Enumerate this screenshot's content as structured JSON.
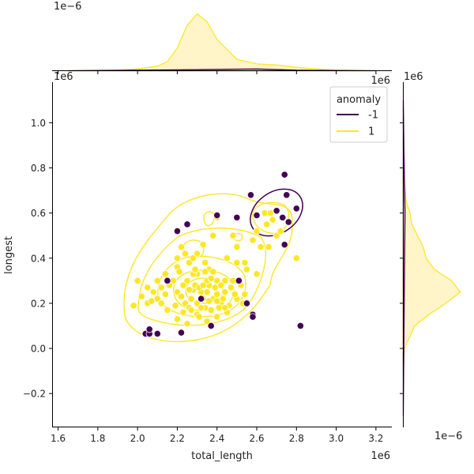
{
  "chart_data": [
    {
      "type": "scatter",
      "subtype": "jointplot-with-kde-contours",
      "xlabel": "total_length",
      "ylabel": "longest",
      "x_offset_label": "1e6",
      "y_offset_label": "1e6",
      "xlim": [
        1.57,
        3.28
      ],
      "ylim": [
        -0.35,
        1.18
      ],
      "xticks": [
        1.6,
        1.8,
        2.0,
        2.2,
        2.4,
        2.6,
        2.8,
        3.0,
        3.2
      ],
      "xtick_labels": [
        "1.6",
        "1.8",
        "2.0",
        "2.2",
        "2.4",
        "2.6",
        "2.8",
        "3.0",
        "3.2"
      ],
      "yticks": [
        -0.2,
        0.0,
        0.2,
        0.4,
        0.6,
        0.8,
        1.0
      ],
      "ytick_labels": [
        "−0.2",
        "0.0",
        "0.2",
        "0.4",
        "0.6",
        "0.8",
        "1.0"
      ],
      "legend": {
        "title": "anomaly",
        "placement": "top-right",
        "entries": [
          {
            "label": "-1",
            "color": "#440154"
          },
          {
            "label": "1",
            "color": "#fde725"
          }
        ]
      },
      "series": [
        {
          "name": "-1",
          "color": "#440154",
          "points": [
            [
              2.04,
              0.065
            ],
            [
              2.06,
              0.065
            ],
            [
              2.06,
              0.085
            ],
            [
              2.1,
              0.065
            ],
            [
              2.22,
              0.07
            ],
            [
              2.37,
              0.1
            ],
            [
              2.32,
              0.22
            ],
            [
              2.15,
              0.3
            ],
            [
              2.2,
              0.52
            ],
            [
              2.25,
              0.55
            ],
            [
              2.4,
              0.59
            ],
            [
              2.5,
              0.58
            ],
            [
              2.57,
              0.68
            ],
            [
              2.6,
              0.59
            ],
            [
              2.7,
              0.61
            ],
            [
              2.74,
              0.77
            ],
            [
              2.75,
              0.68
            ],
            [
              2.73,
              0.58
            ],
            [
              2.76,
              0.56
            ],
            [
              2.8,
              0.62
            ],
            [
              2.55,
              0.2
            ],
            [
              2.58,
              0.15
            ],
            [
              2.58,
              0.14
            ],
            [
              2.82,
              0.1
            ],
            [
              2.74,
              0.46
            ],
            [
              2.51,
              0.3
            ]
          ]
        },
        {
          "name": "1",
          "color": "#fde725",
          "points": [
            [
              2.0,
              0.3
            ],
            [
              2.02,
              0.23
            ],
            [
              2.05,
              0.27
            ],
            [
              2.08,
              0.25
            ],
            [
              2.1,
              0.22
            ],
            [
              2.12,
              0.2
            ],
            [
              2.15,
              0.17
            ],
            [
              2.18,
              0.3
            ],
            [
              2.2,
              0.25
            ],
            [
              2.22,
              0.23
            ],
            [
              2.24,
              0.2
            ],
            [
              2.26,
              0.18
            ],
            [
              2.28,
              0.26
            ],
            [
              2.3,
              0.2
            ],
            [
              2.32,
              0.25
            ],
            [
              2.34,
              0.18
            ],
            [
              2.36,
              0.28
            ],
            [
              2.38,
              0.22
            ],
            [
              2.4,
              0.24
            ],
            [
              2.42,
              0.2
            ],
            [
              2.44,
              0.25
            ],
            [
              2.46,
              0.19
            ],
            [
              2.48,
              0.3
            ],
            [
              2.5,
              0.22
            ],
            [
              2.52,
              0.28
            ],
            [
              2.54,
              0.24
            ],
            [
              2.2,
              0.4
            ],
            [
              2.22,
              0.45
            ],
            [
              2.26,
              0.38
            ],
            [
              2.3,
              0.42
            ],
            [
              2.33,
              0.46
            ],
            [
              2.36,
              0.35
            ],
            [
              2.38,
              0.5
            ],
            [
              2.4,
              0.58
            ],
            [
              2.45,
              0.4
            ],
            [
              2.5,
              0.38
            ],
            [
              2.3,
              0.15
            ],
            [
              2.35,
              0.12
            ],
            [
              2.4,
              0.14
            ],
            [
              2.2,
              0.13
            ],
            [
              2.25,
              0.11
            ],
            [
              2.62,
              0.45
            ],
            [
              2.65,
              0.55
            ],
            [
              2.68,
              0.57
            ],
            [
              2.7,
              0.5
            ],
            [
              2.72,
              0.52
            ],
            [
              2.6,
              0.52
            ],
            [
              2.8,
              0.4
            ],
            [
              2.66,
              0.45
            ],
            [
              2.54,
              0.38
            ],
            [
              2.6,
              0.33
            ],
            [
              1.98,
              0.19
            ],
            [
              2.14,
              0.33
            ],
            [
              2.1,
              0.3
            ],
            [
              2.16,
              0.28
            ],
            [
              2.44,
              0.3
            ],
            [
              2.4,
              0.3
            ],
            [
              2.3,
              0.33
            ],
            [
              2.25,
              0.3
            ],
            [
              2.35,
              0.3
            ],
            [
              2.28,
              0.33
            ],
            [
              2.32,
              0.18
            ],
            [
              2.27,
              0.22
            ],
            [
              2.33,
              0.22
            ],
            [
              2.37,
              0.17
            ],
            [
              2.41,
              0.18
            ],
            [
              2.45,
              0.16
            ],
            [
              2.29,
              0.28
            ],
            [
              2.31,
              0.27
            ],
            [
              2.35,
              0.25
            ],
            [
              2.23,
              0.28
            ],
            [
              2.26,
              0.26
            ],
            [
              2.39,
              0.27
            ],
            [
              2.43,
              0.22
            ],
            [
              2.47,
              0.27
            ],
            [
              2.49,
              0.24
            ],
            [
              2.53,
              0.2
            ],
            [
              2.05,
              0.2
            ],
            [
              2.2,
              0.36
            ],
            [
              2.28,
              0.4
            ],
            [
              2.24,
              0.42
            ],
            [
              2.34,
              0.38
            ],
            [
              2.55,
              0.35
            ],
            [
              2.5,
              0.45
            ],
            [
              2.64,
              0.6
            ],
            [
              2.67,
              0.6
            ],
            [
              2.58,
              0.48
            ],
            [
              2.48,
              0.5
            ],
            [
              2.21,
              0.34
            ],
            [
              2.14,
              0.24
            ],
            [
              2.07,
              0.21
            ],
            [
              2.12,
              0.27
            ],
            [
              2.29,
              0.35
            ],
            [
              2.34,
              0.34
            ],
            [
              2.38,
              0.34
            ],
            [
              2.42,
              0.28
            ],
            [
              2.27,
              0.17
            ],
            [
              2.31,
              0.14
            ],
            [
              2.36,
              0.21
            ],
            [
              2.4,
              0.21
            ],
            [
              2.44,
              0.18
            ],
            [
              2.19,
              0.19
            ],
            [
              2.23,
              0.16
            ],
            [
              2.33,
              0.28
            ],
            [
              2.37,
              0.31
            ]
          ]
        }
      ]
    },
    {
      "type": "area",
      "role": "marginal-x-kde",
      "offset_label": "1e−6",
      "series": [
        {
          "name": "1",
          "color": "#fde725",
          "fill": "#fff4c2",
          "x": [
            1.65,
            1.9,
            2.0,
            2.1,
            2.15,
            2.2,
            2.25,
            2.3,
            2.35,
            2.4,
            2.5,
            2.6,
            2.7,
            2.8,
            2.9,
            3.0,
            3.2
          ],
          "density": [
            0.0,
            0.01,
            0.03,
            0.08,
            0.16,
            0.4,
            0.8,
            1.0,
            0.86,
            0.55,
            0.2,
            0.12,
            0.1,
            0.06,
            0.03,
            0.01,
            0.0
          ]
        },
        {
          "name": "-1",
          "color": "#440154",
          "fill": "none",
          "x": [
            1.65,
            2.0,
            2.3,
            2.6,
            2.8,
            3.2
          ],
          "density": [
            0.0,
            0.01,
            0.02,
            0.03,
            0.01,
            0.0
          ]
        }
      ]
    },
    {
      "type": "area",
      "role": "marginal-y-kde",
      "offset_label": "1e−6",
      "series": [
        {
          "name": "1",
          "color": "#fde725",
          "fill": "#fff4c2",
          "y": [
            -0.1,
            0.0,
            0.1,
            0.15,
            0.2,
            0.25,
            0.3,
            0.35,
            0.4,
            0.45,
            0.5,
            0.55,
            0.6,
            0.65,
            0.8
          ],
          "density": [
            0.0,
            0.02,
            0.2,
            0.45,
            0.75,
            1.0,
            0.85,
            0.55,
            0.4,
            0.35,
            0.25,
            0.15,
            0.12,
            0.05,
            0.0
          ]
        },
        {
          "name": "-1",
          "color": "#440154",
          "fill": "none",
          "y": [
            -0.3,
            0.0,
            0.3,
            0.6,
            0.9,
            1.1
          ],
          "density": [
            0.0,
            0.01,
            0.02,
            0.03,
            0.01,
            0.0
          ]
        }
      ]
    }
  ]
}
